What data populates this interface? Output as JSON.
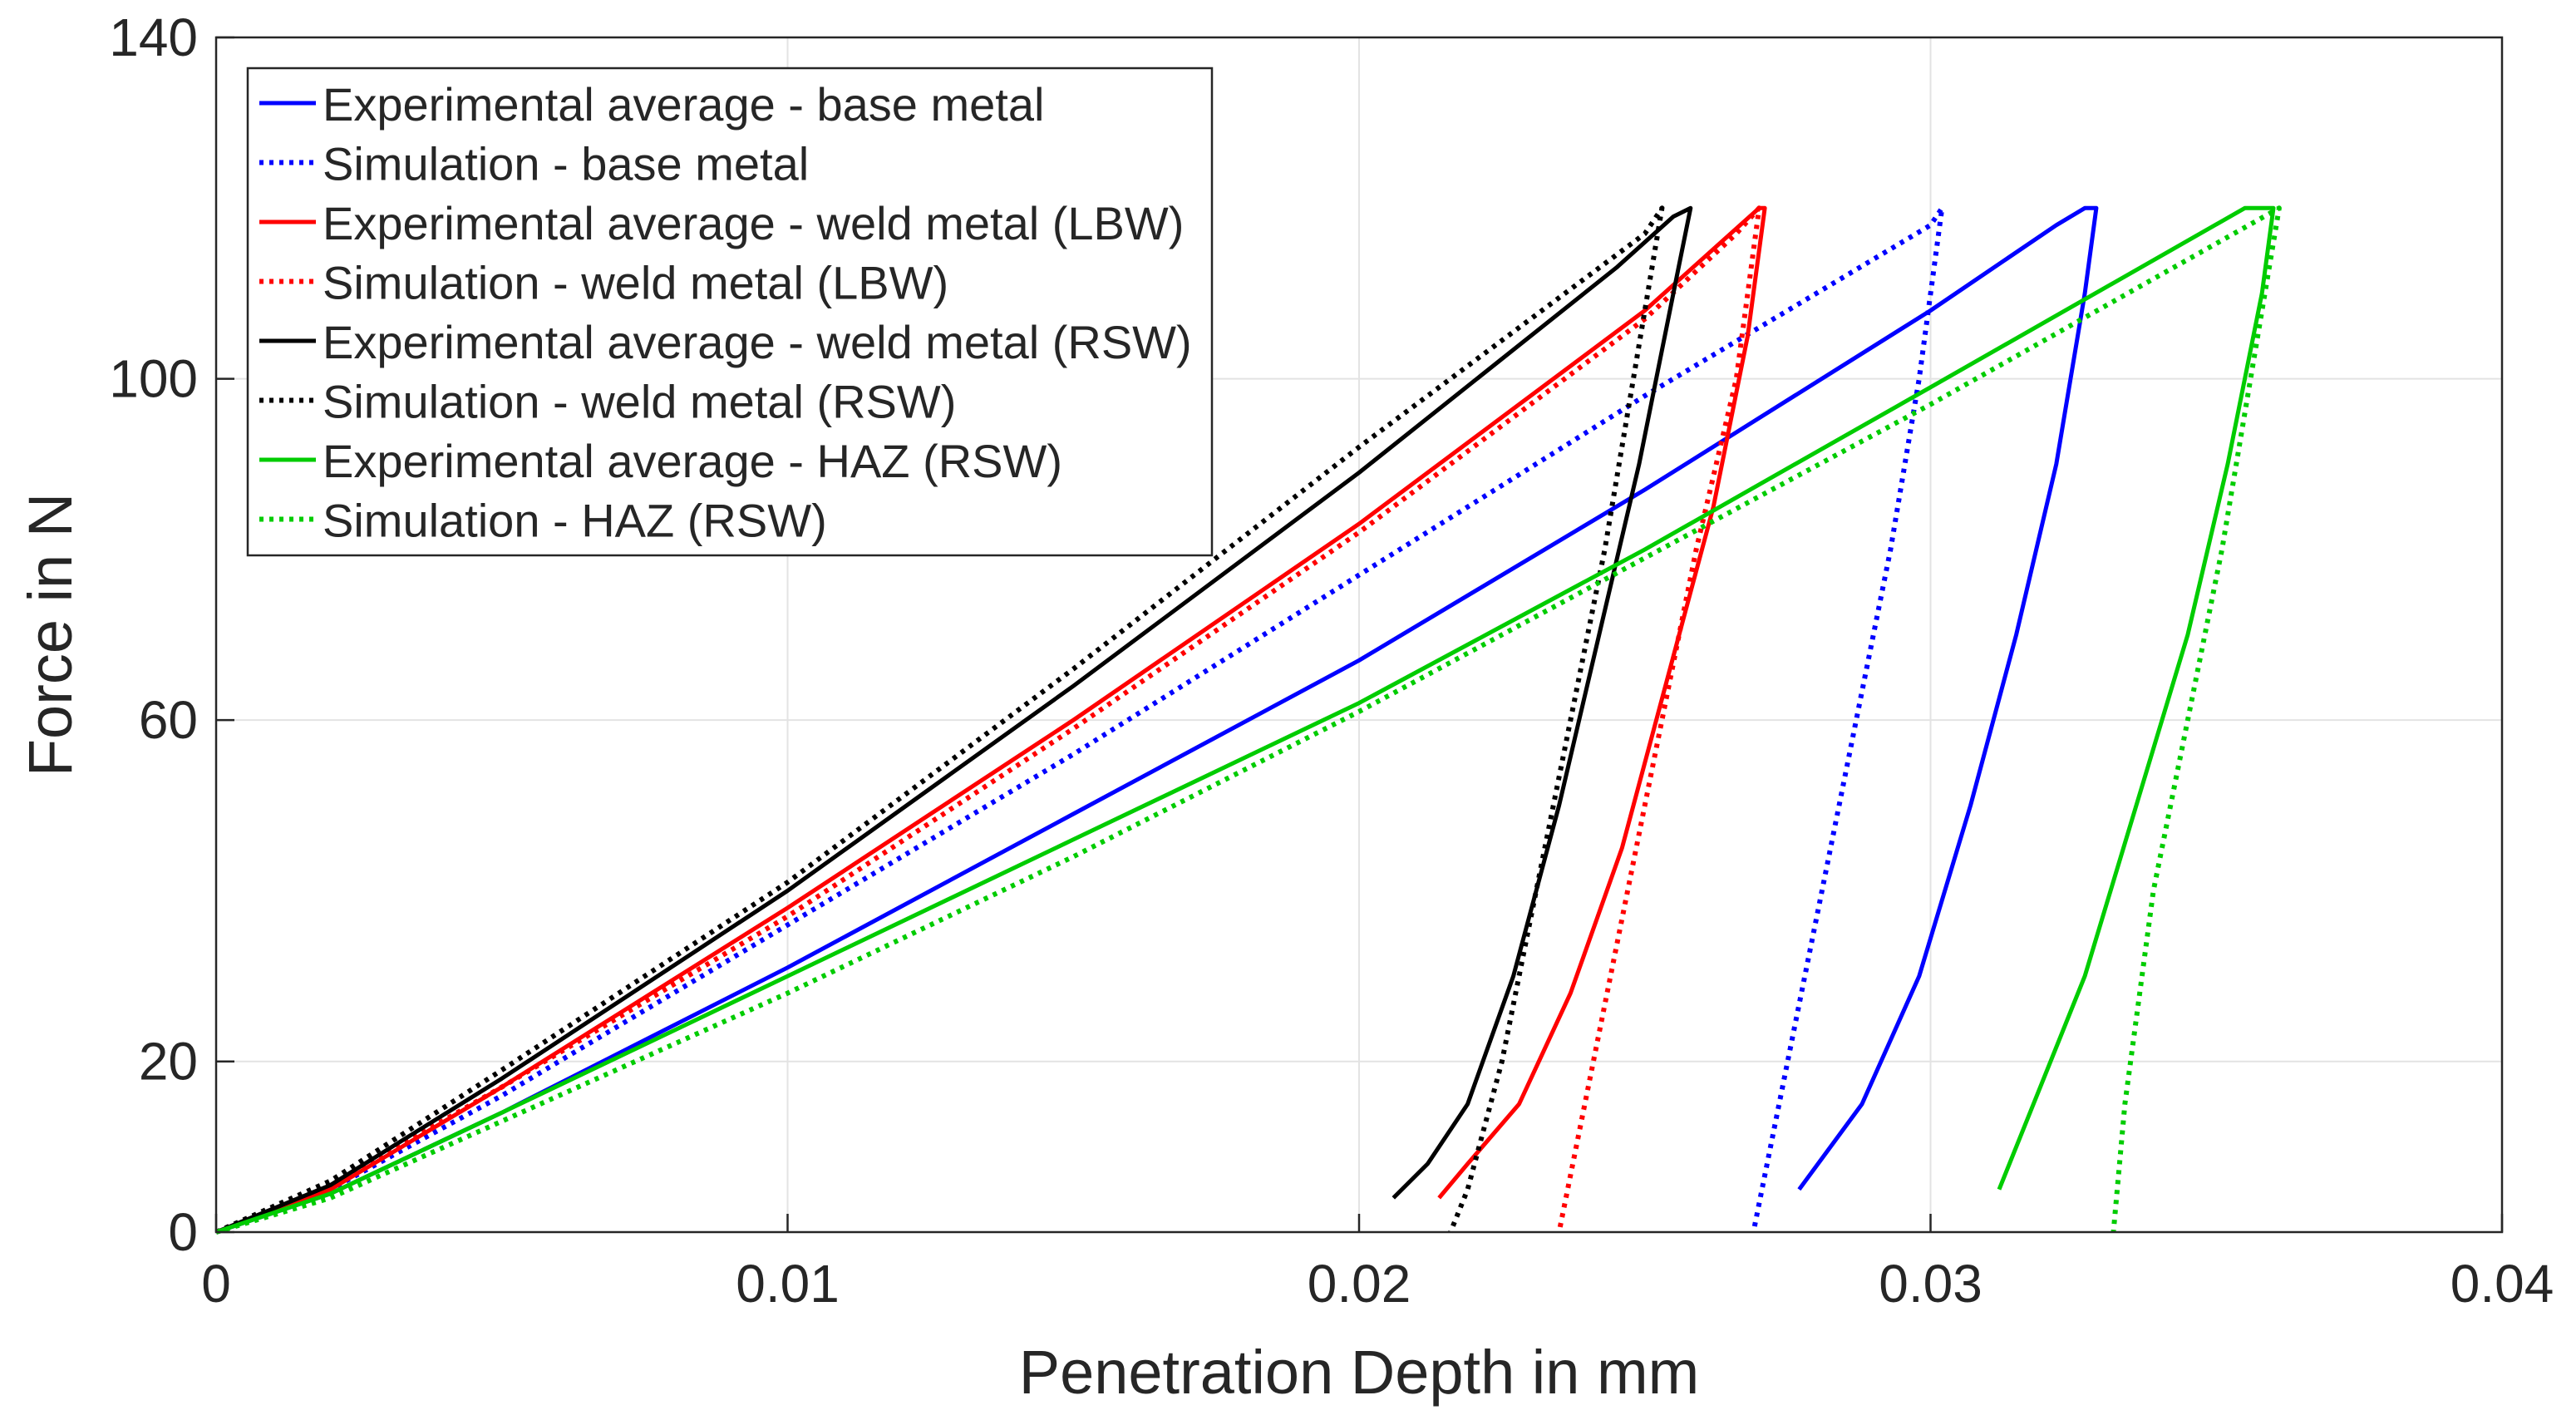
{
  "chart_data": {
    "type": "line",
    "title": "",
    "xlabel": "Penetration Depth in mm",
    "ylabel": "Force in N",
    "xlim": [
      0,
      0.04
    ],
    "ylim": [
      0,
      140
    ],
    "xticks": [
      0,
      0.01,
      0.02,
      0.03,
      0.04
    ],
    "xtick_labels": [
      "0",
      "0.01",
      "0.02",
      "0.03",
      "0.04"
    ],
    "yticks": [
      0,
      20,
      60,
      100,
      140
    ],
    "ytick_labels": [
      "0",
      "20",
      "60",
      "100",
      "140"
    ],
    "grid": true,
    "legend_position": "top-left",
    "series": [
      {
        "name": "Experimental average - base metal",
        "color": "#0000ff",
        "style": "solid",
        "x": [
          0,
          0.002,
          0.005,
          0.01,
          0.015,
          0.02,
          0.025,
          0.03,
          0.0322,
          0.0327,
          0.0329,
          0.0327,
          0.0322,
          0.0315,
          0.0307,
          0.0298,
          0.0288,
          0.0277
        ],
        "y": [
          0,
          4.5,
          14,
          31,
          49,
          67,
          87,
          108,
          118,
          120,
          120,
          110,
          90,
          70,
          50,
          30,
          15,
          5
        ]
      },
      {
        "name": "Simulation - base metal",
        "color": "#0000ff",
        "style": "dotted",
        "x": [
          0,
          0.002,
          0.005,
          0.01,
          0.015,
          0.02,
          0.025,
          0.03,
          0.0302,
          0.0298,
          0.0293,
          0.0287,
          0.0281,
          0.0275,
          0.0269
        ],
        "y": [
          0,
          5,
          16,
          36,
          56,
          77,
          98,
          118,
          120,
          100,
          80,
          60,
          40,
          20,
          0
        ]
      },
      {
        "name": "Experimental average - weld metal (LBW)",
        "color": "#ff0000",
        "style": "solid",
        "x": [
          0,
          0.002,
          0.005,
          0.01,
          0.015,
          0.02,
          0.025,
          0.0265,
          0.027,
          0.0271,
          0.0268,
          0.0262,
          0.0254,
          0.0246,
          0.0237,
          0.0228,
          0.0219,
          0.0214
        ],
        "y": [
          0,
          5,
          17,
          38,
          60,
          83,
          108,
          117,
          120,
          120,
          105,
          85,
          65,
          45,
          28,
          15,
          8,
          4
        ]
      },
      {
        "name": "Simulation - weld metal (LBW)",
        "color": "#ff0000",
        "style": "dotted",
        "x": [
          0,
          0.002,
          0.005,
          0.01,
          0.015,
          0.02,
          0.025,
          0.0266,
          0.027,
          0.0266,
          0.0259,
          0.0253,
          0.0247,
          0.0241,
          0.0235
        ],
        "y": [
          0,
          5.5,
          17,
          37,
          59,
          82,
          107,
          117,
          120,
          100,
          80,
          60,
          40,
          20,
          0
        ]
      },
      {
        "name": "Experimental average - weld metal (RSW)",
        "color": "#000000",
        "style": "solid",
        "x": [
          0,
          0.002,
          0.005,
          0.01,
          0.015,
          0.02,
          0.0245,
          0.0255,
          0.0258,
          0.0255,
          0.0249,
          0.0242,
          0.0235,
          0.0227,
          0.0219,
          0.0212,
          0.0206
        ],
        "y": [
          0,
          5.5,
          18,
          40,
          64,
          89,
          113,
          119,
          120,
          110,
          90,
          70,
          50,
          30,
          15,
          8,
          4
        ]
      },
      {
        "name": "Simulation - weld metal (RSW)",
        "color": "#000000",
        "style": "dotted",
        "x": [
          0,
          0.002,
          0.005,
          0.01,
          0.015,
          0.02,
          0.025,
          0.0253,
          0.0248,
          0.0243,
          0.0237,
          0.0231,
          0.0225,
          0.0219,
          0.0216
        ],
        "y": [
          0,
          6,
          19,
          41,
          66,
          92,
          117,
          120,
          100,
          80,
          60,
          40,
          20,
          5,
          0
        ]
      },
      {
        "name": "Experimental average - HAZ (RSW)",
        "color": "#00cc00",
        "style": "solid",
        "x": [
          0,
          0.002,
          0.005,
          0.01,
          0.015,
          0.02,
          0.025,
          0.03,
          0.0355,
          0.036,
          0.0358,
          0.0352,
          0.0345,
          0.0336,
          0.0327,
          0.0318,
          0.0312
        ],
        "y": [
          0,
          4.5,
          14,
          30,
          46,
          62,
          80,
          99,
          120,
          120,
          110,
          90,
          70,
          50,
          30,
          15,
          5
        ]
      },
      {
        "name": "Simulation - HAZ (RSW)",
        "color": "#00cc00",
        "style": "dotted",
        "x": [
          0,
          0.002,
          0.005,
          0.01,
          0.015,
          0.02,
          0.025,
          0.03,
          0.0361,
          0.0356,
          0.0351,
          0.0345,
          0.0339,
          0.0334,
          0.0332
        ],
        "y": [
          0,
          4,
          13,
          28,
          44,
          61,
          79,
          97,
          120,
          100,
          80,
          60,
          40,
          15,
          0
        ]
      }
    ]
  }
}
